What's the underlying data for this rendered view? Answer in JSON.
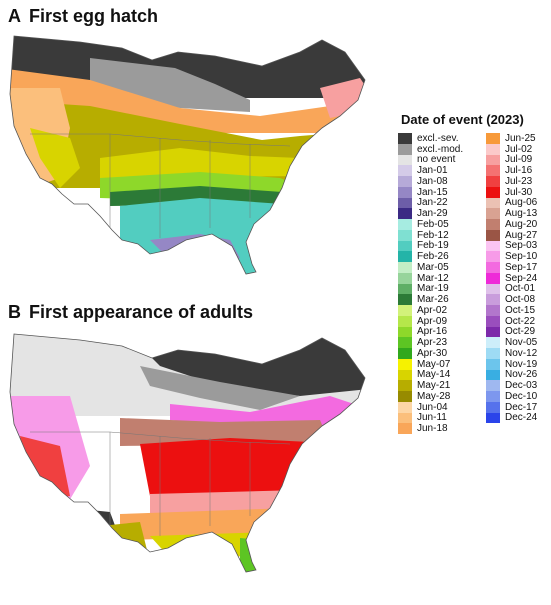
{
  "panels": [
    {
      "letter": "A",
      "title": "First egg hatch"
    },
    {
      "letter": "B",
      "title": "First appearance of adults"
    }
  ],
  "legend": {
    "title": "Date of event (2023)",
    "items": [
      {
        "label": "excl.-sev.",
        "color": "#3a3a3a"
      },
      {
        "label": "excl.-mod.",
        "color": "#9b9b9b"
      },
      {
        "label": "no event",
        "color": "#e4e4e4"
      },
      {
        "label": "Jan-01",
        "color": "#d4cbe8"
      },
      {
        "label": "Jan-08",
        "color": "#b6aad8"
      },
      {
        "label": "Jan-15",
        "color": "#9587c5"
      },
      {
        "label": "Jan-22",
        "color": "#6d5ea8"
      },
      {
        "label": "Jan-29",
        "color": "#3b2a84"
      },
      {
        "label": "Feb-05",
        "color": "#a6ece1"
      },
      {
        "label": "Feb-12",
        "color": "#7fe0d2"
      },
      {
        "label": "Feb-19",
        "color": "#52cdc0"
      },
      {
        "label": "Feb-26",
        "color": "#24b4a8"
      },
      {
        "label": "Mar-05",
        "color": "#c3eec5"
      },
      {
        "label": "Mar-12",
        "color": "#97d49b"
      },
      {
        "label": "Mar-19",
        "color": "#5fae66"
      },
      {
        "label": "Mar-26",
        "color": "#2c7a37"
      },
      {
        "label": "Apr-02",
        "color": "#d2f27a"
      },
      {
        "label": "Apr-09",
        "color": "#b5e74a"
      },
      {
        "label": "Apr-16",
        "color": "#8ed82a"
      },
      {
        "label": "Apr-23",
        "color": "#5dc523"
      },
      {
        "label": "Apr-30",
        "color": "#31a81d"
      },
      {
        "label": "May-07",
        "color": "#f6f200"
      },
      {
        "label": "May-14",
        "color": "#d8d400"
      },
      {
        "label": "May-21",
        "color": "#b7ad00"
      },
      {
        "label": "May-28",
        "color": "#978b00"
      },
      {
        "label": "Jun-04",
        "color": "#fdd6a6"
      },
      {
        "label": "Jun-11",
        "color": "#fbbf7c"
      },
      {
        "label": "Jun-18",
        "color": "#f9a659"
      },
      {
        "label": "Jun-25",
        "color": "#f79a3a"
      },
      {
        "label": "Jul-02",
        "color": "#fbcaca"
      },
      {
        "label": "Jul-09",
        "color": "#f7a0a0"
      },
      {
        "label": "Jul-16",
        "color": "#f47272"
      },
      {
        "label": "Jul-23",
        "color": "#f04040"
      },
      {
        "label": "Jul-30",
        "color": "#ec1010"
      },
      {
        "label": "Aug-06",
        "color": "#ebc1b3"
      },
      {
        "label": "Aug-13",
        "color": "#d9a292"
      },
      {
        "label": "Aug-20",
        "color": "#c17f6f"
      },
      {
        "label": "Aug-27",
        "color": "#9a5545"
      },
      {
        "label": "Sep-03",
        "color": "#fbc4f2"
      },
      {
        "label": "Sep-10",
        "color": "#f79be8"
      },
      {
        "label": "Sep-17",
        "color": "#f36ae0"
      },
      {
        "label": "Sep-24",
        "color": "#ee2ad8"
      },
      {
        "label": "Oct-01",
        "color": "#dfc1ea"
      },
      {
        "label": "Oct-08",
        "color": "#c99ddc"
      },
      {
        "label": "Oct-15",
        "color": "#b276cc"
      },
      {
        "label": "Oct-22",
        "color": "#9a4ebd"
      },
      {
        "label": "Oct-29",
        "color": "#7d2aaa"
      },
      {
        "label": "Nov-05",
        "color": "#cdeefa"
      },
      {
        "label": "Nov-12",
        "color": "#9edbf4"
      },
      {
        "label": "Nov-19",
        "color": "#6cc5ec"
      },
      {
        "label": "Nov-26",
        "color": "#39aee2"
      },
      {
        "label": "Dec-03",
        "color": "#9fb8f0"
      },
      {
        "label": "Dec-10",
        "color": "#7d97ee"
      },
      {
        "label": "Dec-17",
        "color": "#5672ec"
      },
      {
        "label": "Dec-24",
        "color": "#2a44ea"
      }
    ]
  }
}
